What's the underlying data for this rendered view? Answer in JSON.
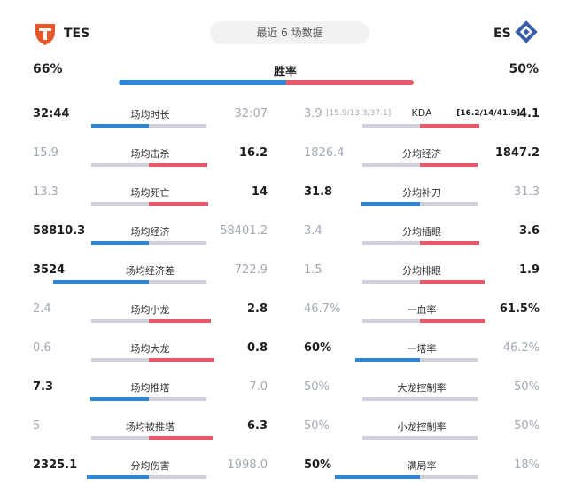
{
  "header": {
    "team_left": "TES",
    "team_right": "ES",
    "subtitle": "最近 6 场数据"
  },
  "win_rate": {
    "label": "胜率",
    "left": "66%",
    "right": "50%",
    "left_pct": 66,
    "right_pct": 50
  },
  "stats_left": [
    {
      "label": "场均时长",
      "left": "32:44",
      "right": "32:07",
      "winner": "left"
    },
    {
      "label": "场均击杀",
      "left": "15.9",
      "right": "16.2",
      "winner": "right"
    },
    {
      "label": "场均死亡",
      "left": "13.3",
      "right": "14",
      "winner": "right"
    },
    {
      "label": "场均经济",
      "left": "58810.3",
      "right": "58401.2",
      "winner": "left"
    },
    {
      "label": "场均经济差",
      "left": "3524",
      "right": "722.9",
      "winner": "left"
    },
    {
      "label": "场均小龙",
      "left": "2.4",
      "right": "2.8",
      "winner": "right"
    },
    {
      "label": "场均大龙",
      "left": "0.6",
      "right": "0.8",
      "winner": "right"
    },
    {
      "label": "场均推塔",
      "left": "7.3",
      "right": "7.0",
      "winner": "left"
    },
    {
      "label": "场均被推塔",
      "left": "5",
      "right": "6.3",
      "winner": "right"
    },
    {
      "label": "分均伤害",
      "left": "2325.1",
      "right": "1998.0",
      "winner": "left"
    }
  ],
  "stats_right": [
    {
      "label": "KDA",
      "left": "3.9",
      "left_sub": "[15.9/13.3/37.1]",
      "right": "4.1",
      "right_sub": "[16.2/14/41.9]",
      "winner": "right"
    },
    {
      "label": "分均经济",
      "left": "1826.4",
      "right": "1847.2",
      "winner": "right"
    },
    {
      "label": "分均补刀",
      "left": "31.8",
      "right": "31.3",
      "winner": "left"
    },
    {
      "label": "分均插眼",
      "left": "3.4",
      "right": "3.6",
      "winner": "right"
    },
    {
      "label": "分均排眼",
      "left": "1.5",
      "right": "1.9",
      "winner": "right"
    },
    {
      "label": "一血率",
      "left": "46.7%",
      "right": "61.5%",
      "winner": "right"
    },
    {
      "label": "一塔率",
      "left": "60%",
      "right": "46.2%",
      "winner": "left"
    },
    {
      "label": "大龙控制率",
      "left": "50%",
      "right": "50%",
      "winner": "none"
    },
    {
      "label": "小龙控制率",
      "left": "50%",
      "right": "50%",
      "winner": "none"
    },
    {
      "label": "满局率",
      "left": "50%",
      "right": "18%",
      "winner": "left"
    }
  ],
  "colors": {
    "left_team": "#2e86d8",
    "right_team": "#e8586b",
    "track": "#cfd3d9"
  },
  "icons": {
    "left_logo": "tes-logo-icon",
    "right_logo": "es-logo-icon"
  }
}
